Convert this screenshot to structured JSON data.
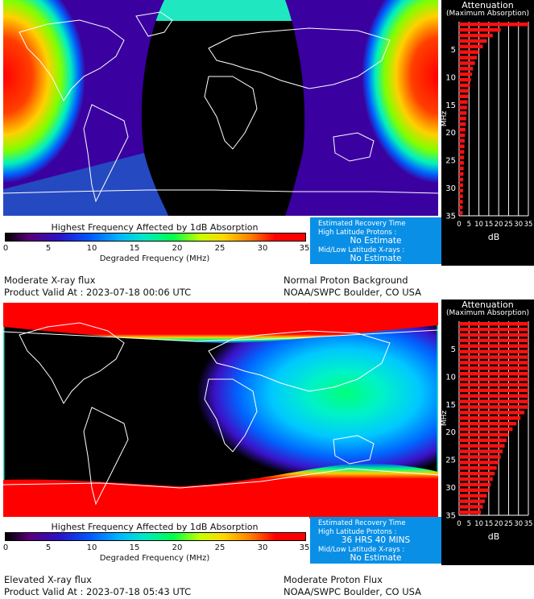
{
  "panels": [
    {
      "map_pattern": "poles",
      "attenuation": {
        "title": "Attenuation",
        "subtitle": "(Maximum Absorption)",
        "y_label": "MHz",
        "x_label": "dB",
        "y_ticks": [
          "5",
          "10",
          "15",
          "20",
          "25",
          "30",
          "35"
        ],
        "x_ticks": [
          "0",
          "5",
          "10",
          "15",
          "20",
          "25",
          "30",
          "35"
        ],
        "db_by_mhz": [
          35,
          21,
          17,
          14,
          12,
          10,
          9,
          8,
          7,
          6.5,
          6,
          5.5,
          5,
          4.6,
          4.3,
          4,
          3.8,
          3.6,
          3.4,
          3.2,
          3,
          2.8,
          2.7,
          2.6,
          2.5,
          2.4,
          2.3,
          2.2,
          2.1,
          2,
          2,
          1.9,
          1.9,
          1.8,
          1.8
        ]
      },
      "legend": {
        "title": "Highest Frequency Affected by 1dB Absorption",
        "ticks": [
          "0",
          "5",
          "10",
          "15",
          "20",
          "25",
          "30",
          "35"
        ],
        "axis_label": "Degraded Frequency (MHz)"
      },
      "recovery": {
        "title": "Estimated Recovery Time",
        "high_label": "High Latitude Protons :",
        "high_value": "No Estimate",
        "mid_label": "Mid/Low Latitude X-rays :",
        "mid_value": "No Estimate"
      },
      "status": {
        "xray": "Moderate X-ray flux",
        "valid": "Product Valid At : 2023-07-18 00:06 UTC",
        "proton": "Normal Proton Background",
        "source": "NOAA/SWPC Boulder, CO USA"
      }
    },
    {
      "map_pattern": "midday",
      "attenuation": {
        "title": "Attenuation",
        "subtitle": "(Maximum Absorption)",
        "y_label": "MHz",
        "x_label": "dB",
        "y_ticks": [
          "5",
          "10",
          "15",
          "20",
          "25",
          "30",
          "35"
        ],
        "x_ticks": [
          "0",
          "5",
          "10",
          "15",
          "20",
          "25",
          "30",
          "35"
        ],
        "db_by_mhz": [
          35,
          35,
          35,
          35,
          35,
          35,
          35,
          35,
          35,
          35,
          35,
          35,
          35,
          35,
          35,
          35,
          33,
          31,
          29,
          27,
          25,
          24,
          23,
          22,
          21,
          20,
          19,
          18,
          17,
          16,
          15,
          14,
          13,
          12,
          11
        ]
      },
      "legend": {
        "title": "Highest Frequency Affected by 1dB Absorption",
        "ticks": [
          "0",
          "5",
          "10",
          "15",
          "20",
          "25",
          "30",
          "35"
        ],
        "axis_label": "Degraded Frequency (MHz)"
      },
      "recovery": {
        "title": "Estimated Recovery Time",
        "high_label": "High Latitude Protons :",
        "high_value": "36 HRS 40 MINS",
        "mid_label": "Mid/Low Latitude X-rays :",
        "mid_value": "No Estimate"
      },
      "status": {
        "xray": "Elevated X-ray flux",
        "valid": "Product Valid At : 2023-07-18 05:43 UTC",
        "proton": "Moderate Proton Flux",
        "source": "NOAA/SWPC Boulder, CO USA"
      }
    }
  ]
}
